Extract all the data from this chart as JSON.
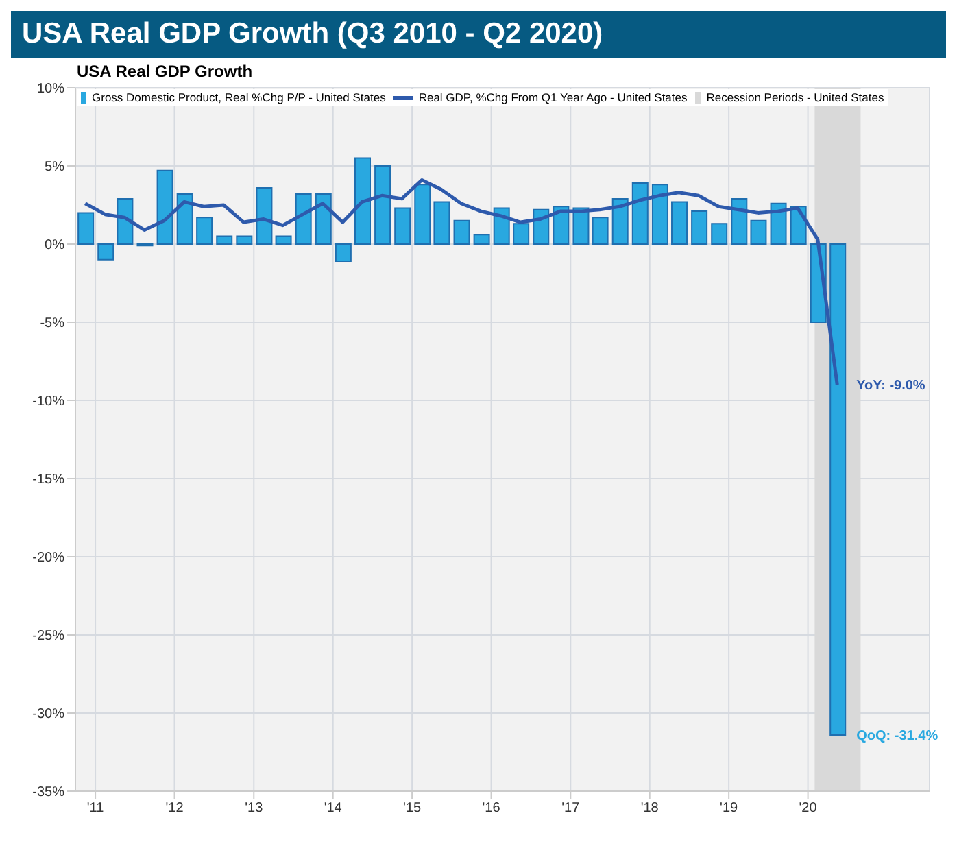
{
  "chart_data": {
    "type": "bar",
    "title": "USA Real GDP Growth (Q3 2010 - Q2 2020)",
    "subtitle": "USA Real GDP Growth",
    "x": [
      "2010-11-15",
      "2011-02-15",
      "2011-05-15",
      "2011-08-15",
      "2011-11-15",
      "2012-02-15",
      "2012-05-15",
      "2012-08-15",
      "2012-11-15",
      "2013-02-15",
      "2013-05-15",
      "2013-08-15",
      "2013-11-15",
      "2014-02-15",
      "2014-05-15",
      "2014-08-15",
      "2014-11-15",
      "2015-02-15",
      "2015-05-15",
      "2015-08-15",
      "2015-11-15",
      "2016-02-15",
      "2016-05-15",
      "2016-08-15",
      "2016-11-15",
      "2017-02-15",
      "2017-05-15",
      "2017-08-15",
      "2017-11-15",
      "2018-02-15",
      "2018-05-15",
      "2018-08-15",
      "2018-11-15",
      "2019-02-15",
      "2019-05-15",
      "2019-08-15",
      "2019-11-15",
      "2020-02-15",
      "2020-05-15"
    ],
    "series": [
      {
        "name": "Gross Domestic Product, Real %Chg P/P - United States",
        "color": "#29a8e0",
        "values": [
          2.0,
          -1.0,
          2.9,
          -0.1,
          4.7,
          3.2,
          1.7,
          0.5,
          0.5,
          3.6,
          0.5,
          3.2,
          3.2,
          -1.1,
          5.5,
          5.0,
          2.3,
          3.8,
          2.7,
          1.5,
          0.6,
          2.3,
          1.3,
          2.2,
          2.4,
          2.3,
          1.7,
          2.9,
          3.9,
          3.8,
          2.7,
          2.1,
          1.3,
          2.9,
          1.5,
          2.6,
          2.4,
          -5.0,
          -31.4
        ]
      },
      {
        "name": "Real GDP, %Chg From Q1 Year Ago - United States",
        "type": "line",
        "color": "#2e5aac",
        "values": [
          2.6,
          1.9,
          1.7,
          0.9,
          1.5,
          2.7,
          2.4,
          2.5,
          1.4,
          1.6,
          1.2,
          1.9,
          2.6,
          1.4,
          2.7,
          3.1,
          2.9,
          4.1,
          3.5,
          2.6,
          2.1,
          1.8,
          1.4,
          1.6,
          2.1,
          2.1,
          2.2,
          2.4,
          2.8,
          3.1,
          3.3,
          3.1,
          2.4,
          2.2,
          2.0,
          2.1,
          2.3,
          0.3,
          -9.0
        ]
      }
    ],
    "bands": [
      {
        "axis": "x",
        "from": "2020-02-01",
        "to": "2020-08-31",
        "label": "Recession Periods - United States",
        "color": "#d9d9d9"
      }
    ],
    "xlim": [
      "2010-10-01",
      "2021-07-15"
    ],
    "xticks": [
      {
        "value": "2011-01-01",
        "label": "'11"
      },
      {
        "value": "2012-01-01",
        "label": "'12"
      },
      {
        "value": "2013-01-01",
        "label": "'13"
      },
      {
        "value": "2014-01-01",
        "label": "'14"
      },
      {
        "value": "2015-01-01",
        "label": "'15"
      },
      {
        "value": "2016-01-01",
        "label": "'16"
      },
      {
        "value": "2017-01-01",
        "label": "'17"
      },
      {
        "value": "2018-01-01",
        "label": "'18"
      },
      {
        "value": "2019-01-01",
        "label": "'19"
      },
      {
        "value": "2020-01-01",
        "label": "'20"
      }
    ],
    "ylim": [
      -35,
      10
    ],
    "yticks": [
      {
        "value": -35,
        "label": "-35%"
      },
      {
        "value": -30,
        "label": "-30%"
      },
      {
        "value": -25,
        "label": "-25%"
      },
      {
        "value": -20,
        "label": "-20%"
      },
      {
        "value": -15,
        "label": "-15%"
      },
      {
        "value": -10,
        "label": "-10%"
      },
      {
        "value": -5,
        "label": "-5%"
      },
      {
        "value": 0,
        "label": "0%"
      },
      {
        "value": 5,
        "label": "5%"
      },
      {
        "value": 10,
        "label": "10%"
      }
    ],
    "annotations": [
      {
        "text": "YoY: -9.0%",
        "x": "2020-05-15",
        "y": -9.0
      },
      {
        "text": "QoQ: -31.4%",
        "x": "2020-05-15",
        "y": -31.4
      }
    ],
    "grid": true,
    "legend": "top left",
    "marker": "none",
    "line_style": "solid"
  }
}
